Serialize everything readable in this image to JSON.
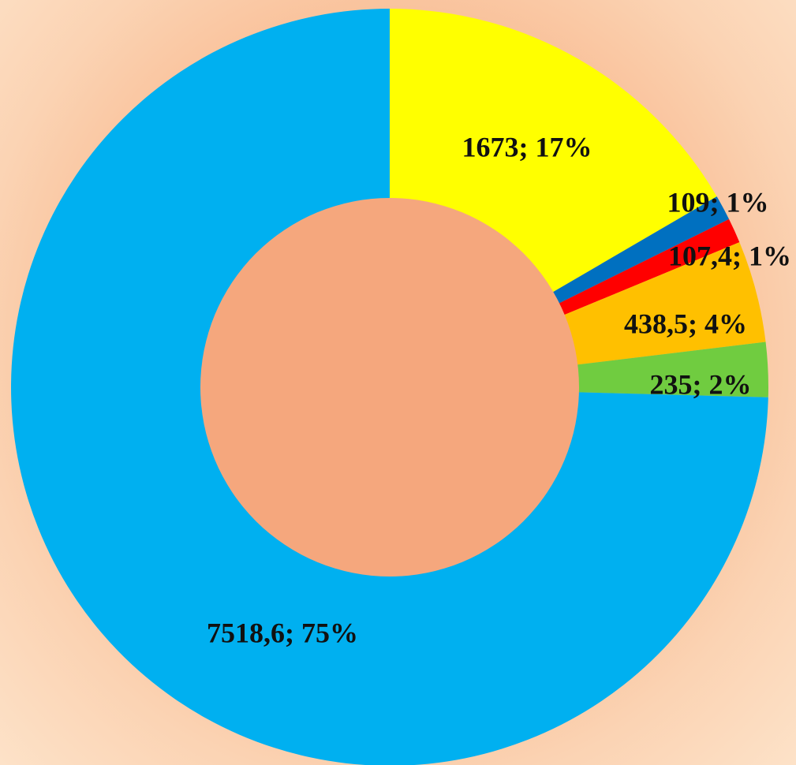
{
  "chart_data": {
    "type": "pie",
    "subtype": "donut",
    "title": "",
    "slices": [
      {
        "value": 1673,
        "label": "1673; 17%",
        "color": "#ffff00"
      },
      {
        "value": 109,
        "label": "109; 1%",
        "color": "#0070c0"
      },
      {
        "value": 107.4,
        "label": "107,4; 1%",
        "color": "#ff0000"
      },
      {
        "value": 438.5,
        "label": "438,5; 4%",
        "color": "#ffc000"
      },
      {
        "value": 235,
        "label": "235; 2%",
        "color": "#70cc40"
      },
      {
        "value": 7518.6,
        "label": "7518,6; 75%",
        "color": "#00b0f0"
      }
    ],
    "start_angle": "12 o'clock",
    "direction": "clockwise",
    "legend": "none",
    "hole_color": "#f5a77d"
  }
}
